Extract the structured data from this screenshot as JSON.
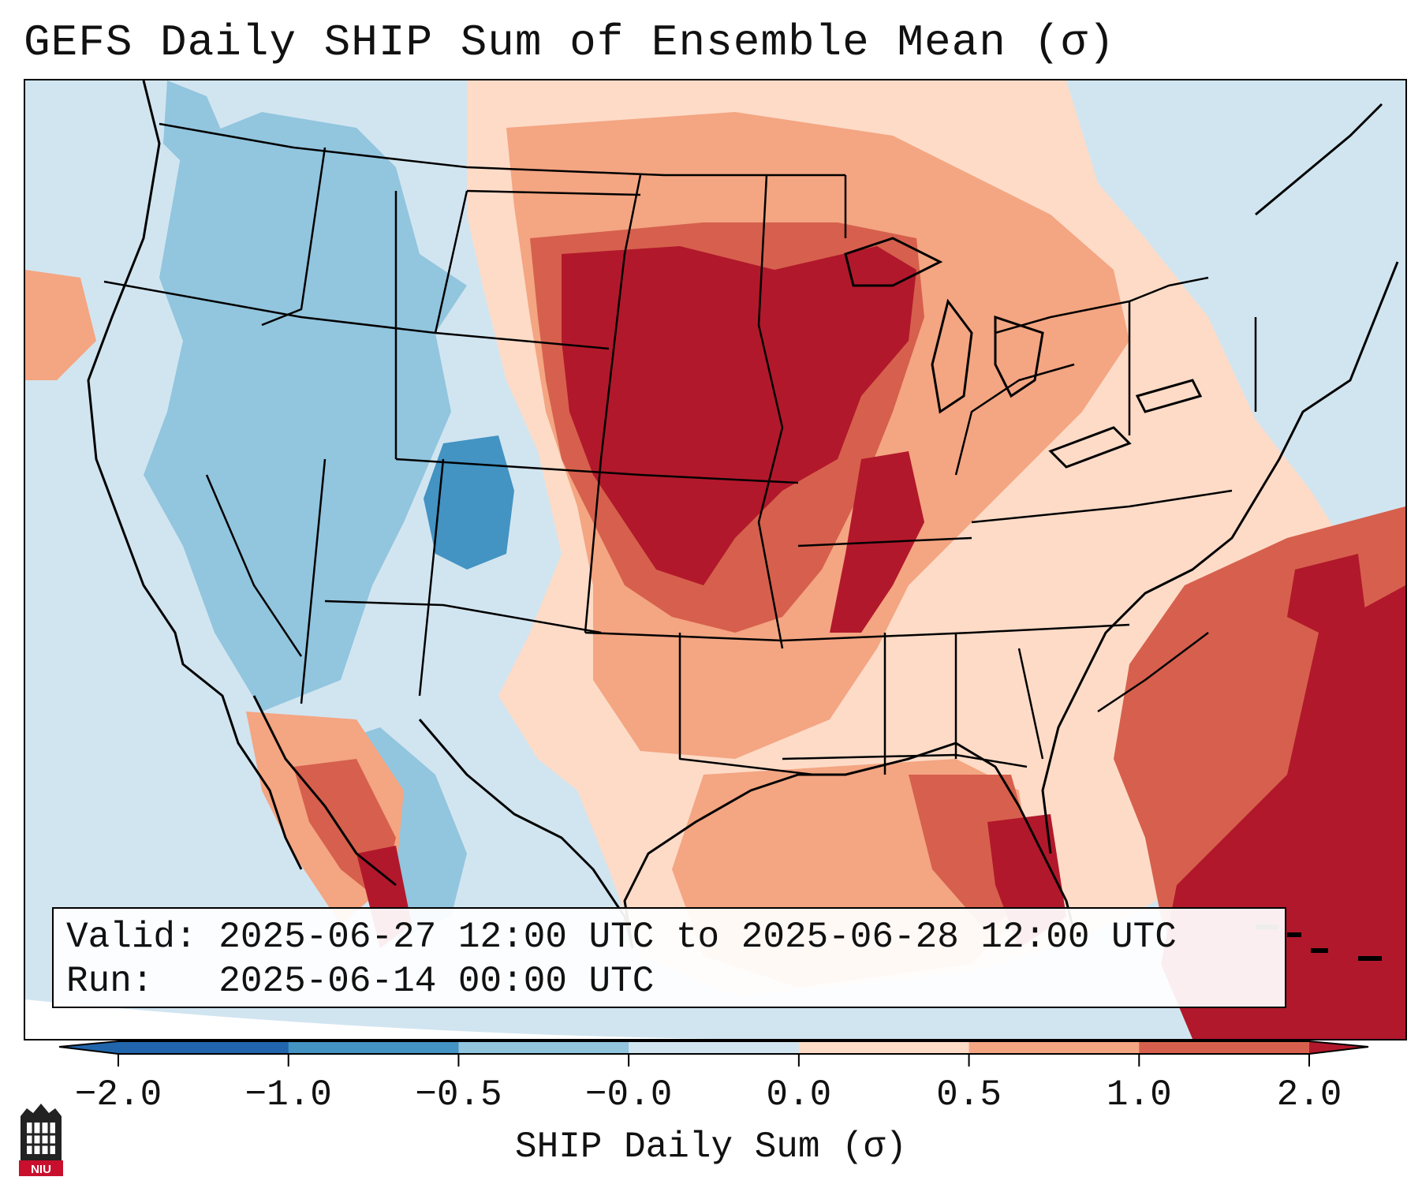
{
  "title": "GEFS Daily SHIP Sum of Ensemble Mean (σ)",
  "info": {
    "valid_label": "Valid:",
    "valid_value": "2025-06-27 12:00 UTC to 2025-06-28 12:00 UTC",
    "run_label": "Run:",
    "run_value": "2025-06-14 00:00 UTC"
  },
  "colorbar": {
    "label": "SHIP Daily Sum (σ)",
    "ticks": [
      "−2.0",
      "−1.0",
      "−0.5",
      "−0.0",
      "0.0",
      "0.5",
      "1.0",
      "2.0"
    ],
    "colors": [
      "#2166ac",
      "#4393c3",
      "#92c5de",
      "#d1e5f0",
      "#fddbc7",
      "#f4a582",
      "#d6604d",
      "#b2182b"
    ],
    "extend": "both"
  },
  "logo": {
    "text": "NIU"
  },
  "icons": {
    "logo": "niu-university-logo-icon"
  }
}
